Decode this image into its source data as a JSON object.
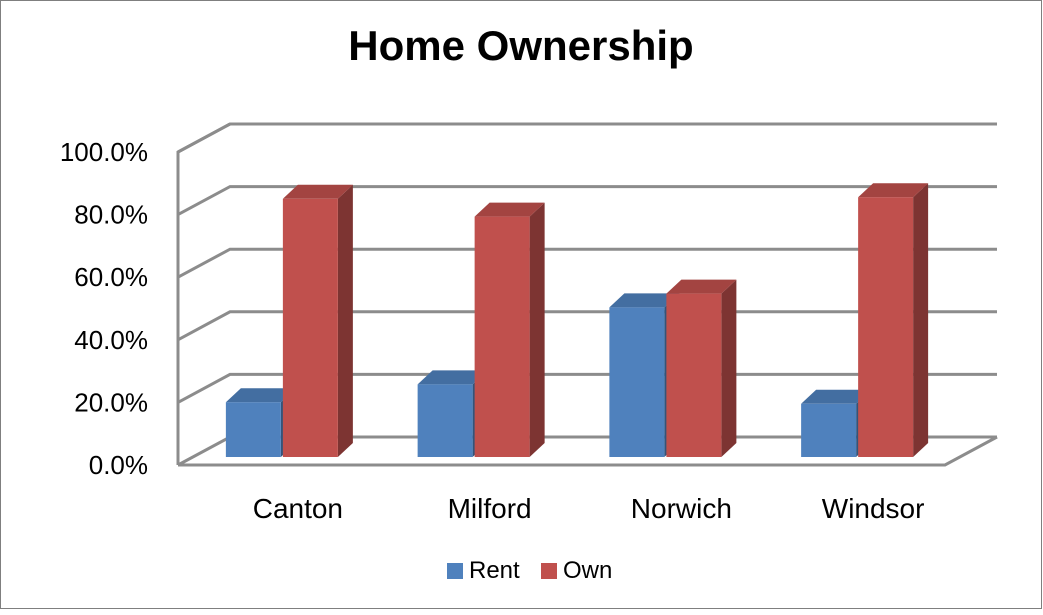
{
  "chart_data": {
    "type": "bar",
    "title": "Home Ownership",
    "categories": [
      "Canton",
      "Milford",
      "Norwich",
      "Windsor"
    ],
    "series": [
      {
        "name": "Rent",
        "values": [
          17.5,
          23.2,
          47.8,
          17.0
        ],
        "color": "#4f81bd"
      },
      {
        "name": "Own",
        "values": [
          82.5,
          76.8,
          52.2,
          83.0
        ],
        "color": "#c0504d"
      }
    ],
    "y_tick_labels": [
      "0.0%",
      "20.0%",
      "40.0%",
      "60.0%",
      "80.0%",
      "100.0%"
    ],
    "ylim": [
      0,
      100
    ],
    "grid": true,
    "legend_position": "bottom",
    "style": "3d-clustered-column"
  }
}
